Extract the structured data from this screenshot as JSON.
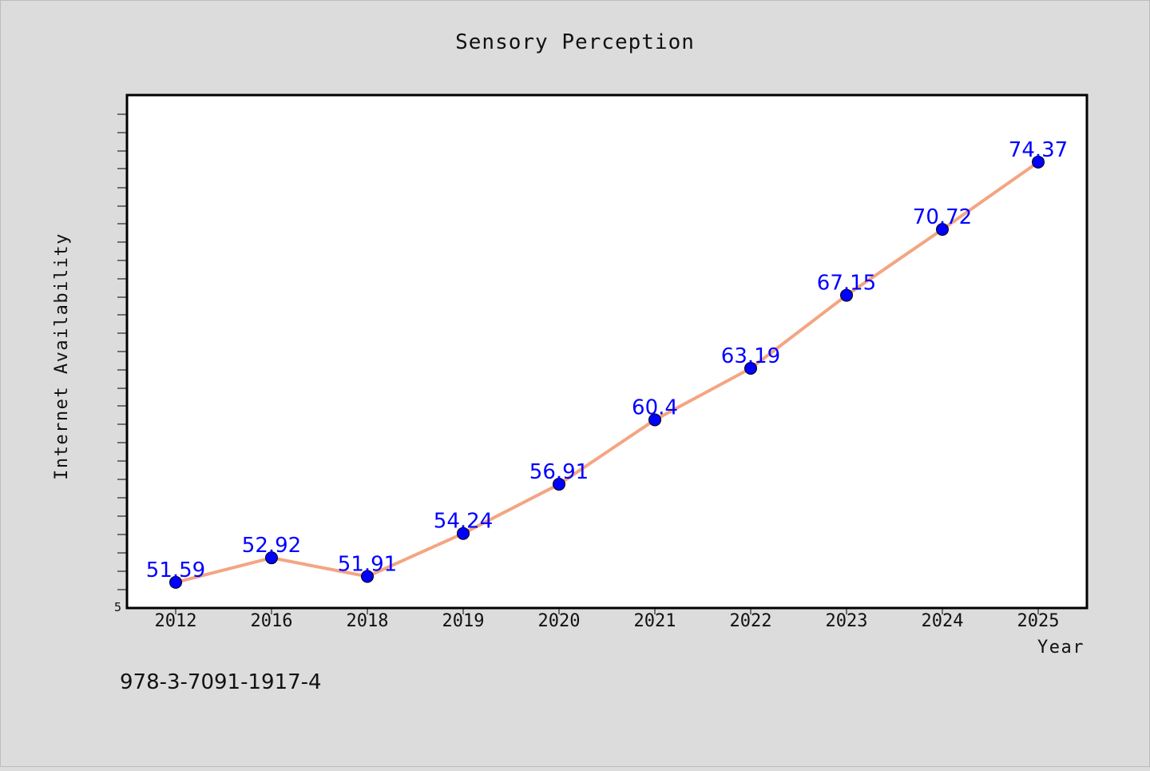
{
  "chart_data": {
    "type": "line",
    "title": "Sensory Perception",
    "xlabel": "Year",
    "ylabel": "Internet Availability",
    "categories": [
      "2012",
      "2016",
      "2018",
      "2019",
      "2020",
      "2021",
      "2022",
      "2023",
      "2024",
      "2025"
    ],
    "series": [
      {
        "values": [
          51.59,
          52.92,
          51.91,
          54.24,
          56.91,
          60.4,
          63.19,
          67.15,
          70.72,
          74.37
        ],
        "labels": [
          "51.59",
          "52.92",
          "51.91",
          "54.24",
          "56.91",
          "60.4",
          "63.19",
          "67.15",
          "70.72",
          "74.37"
        ]
      }
    ],
    "ylim": [
      50.2,
      78.0
    ],
    "yticks": [
      "5"
    ],
    "grid": false,
    "colors": {
      "line": "#f4a582",
      "marker": "#0000ff",
      "data_label": "#0000ff",
      "background": "#dcdcdc",
      "plot_background": "#ffffff"
    }
  },
  "footer": {
    "isbn": "978-3-7091-1917-4"
  }
}
